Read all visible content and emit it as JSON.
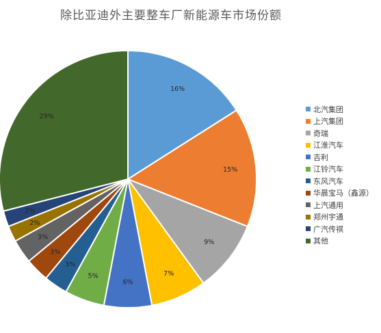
{
  "chart_data": {
    "type": "pie",
    "title": "除比亚迪外主要整车厂新能源车市场份额",
    "legend_position": "right",
    "slices": [
      {
        "name": "北汽集团",
        "value": 16,
        "label": "16%",
        "color": "#5B9BD5"
      },
      {
        "name": "上汽集团",
        "value": 15,
        "label": "15%",
        "color": "#ED7D31"
      },
      {
        "name": "奇瑞",
        "value": 9,
        "label": "9%",
        "color": "#A5A5A5"
      },
      {
        "name": "江淮汽车",
        "value": 7,
        "label": "7%",
        "color": "#FFC000"
      },
      {
        "name": "吉利",
        "value": 6,
        "label": "6%",
        "color": "#4472C4"
      },
      {
        "name": "江铃汽车",
        "value": 5,
        "label": "5%",
        "color": "#70AD47"
      },
      {
        "name": "东风汽车",
        "value": 3,
        "label": "3%",
        "color": "#255E91"
      },
      {
        "name": "华晨宝马（鑫源）",
        "value": 3,
        "label": "3%",
        "color": "#9E480E"
      },
      {
        "name": "上汽通用",
        "value": 3,
        "label": "3%",
        "color": "#636363"
      },
      {
        "name": "郑州宇通",
        "value": 2,
        "label": "2%",
        "color": "#997300"
      },
      {
        "name": "广汽传祺",
        "value": 2,
        "label": "2%",
        "color": "#264478"
      },
      {
        "name": "其他",
        "value": 29,
        "label": "29%",
        "color": "#43682B"
      }
    ]
  }
}
